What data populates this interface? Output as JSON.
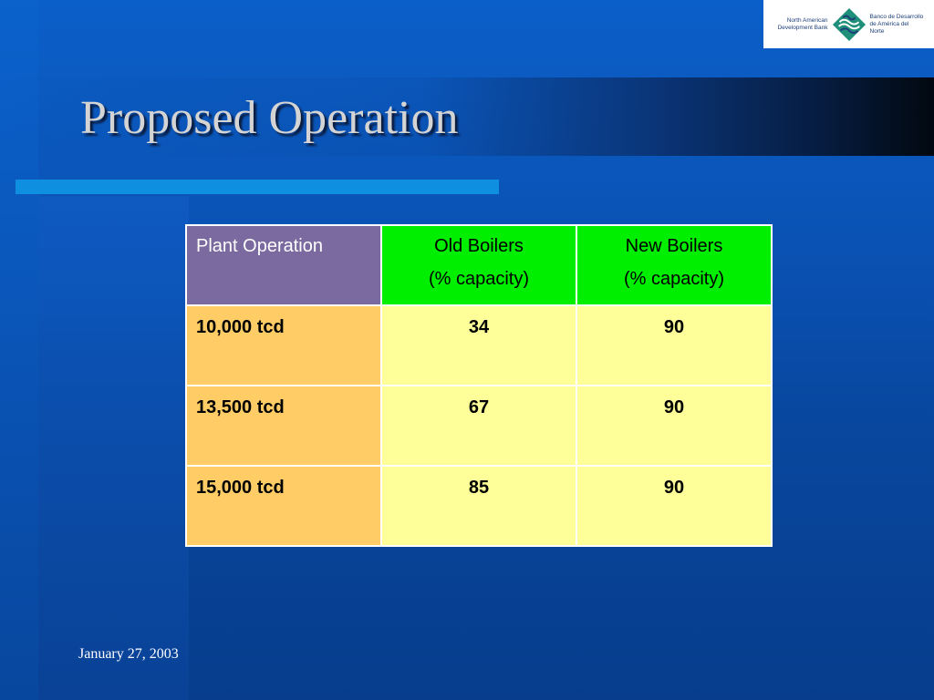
{
  "slide": {
    "title": "Proposed Operation",
    "footer_date": "January 27, 2003"
  },
  "logo": {
    "text_en_line1": "North American",
    "text_en_line2": "Development Bank",
    "text_es_line1": "Banco de Desarrollo",
    "text_es_line2": "de América del Norte",
    "colors": {
      "teal": "#1f8f7a",
      "navy": "#1d3f7a"
    }
  },
  "table": {
    "headers": [
      {
        "line1": "Plant Operation",
        "line2": ""
      },
      {
        "line1": "Old Boilers",
        "line2": "(% capacity)"
      },
      {
        "line1": "New Boilers",
        "line2": "(% capacity)"
      }
    ],
    "rows": [
      {
        "label": "10,000 tcd",
        "old": "34",
        "new": "90"
      },
      {
        "label": "13,500 tcd",
        "old": "67",
        "new": "90"
      },
      {
        "label": "15,000 tcd",
        "old": "85",
        "new": "90"
      }
    ]
  },
  "colors": {
    "background": "#0a52b4",
    "accent_bar": "#0f8fe0",
    "header_purple": "#7b6aa0",
    "header_green": "#00ee00",
    "label_orange": "#ffcc66",
    "cell_yellow": "#ffff99"
  }
}
